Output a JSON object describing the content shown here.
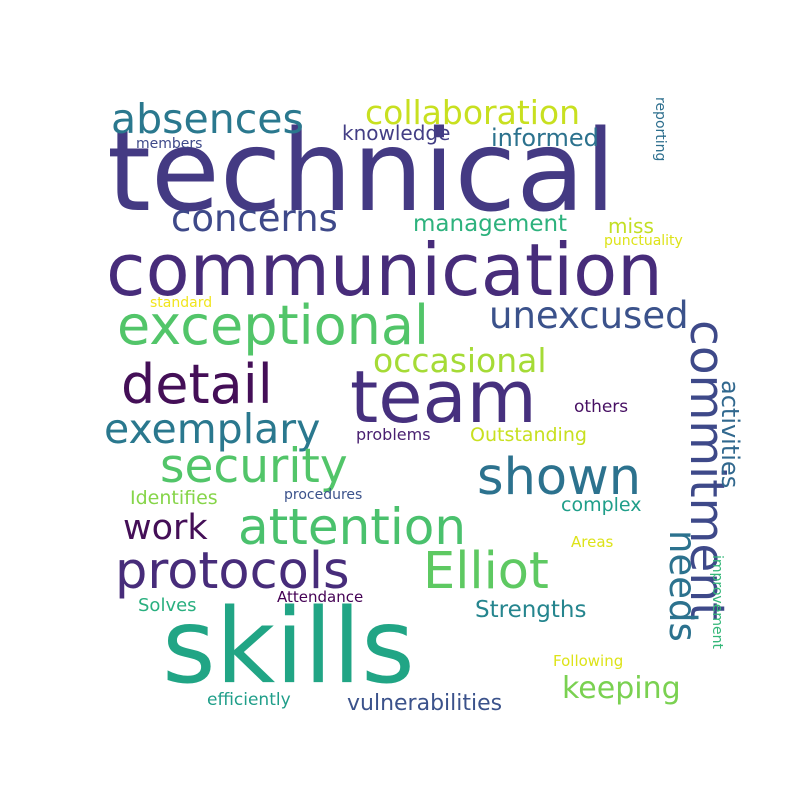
{
  "words": [
    {
      "text": "technical",
      "color": "#443a83"
    },
    {
      "text": "communication",
      "color": "#472c7a"
    },
    {
      "text": "skills",
      "color": "#21a585"
    },
    {
      "text": "team",
      "color": "#46307e"
    },
    {
      "text": "exceptional",
      "color": "#52c569"
    },
    {
      "text": "detail",
      "color": "#440f57"
    },
    {
      "text": "absences",
      "color": "#2a788e"
    },
    {
      "text": "collaboration",
      "color": "#c8e020"
    },
    {
      "text": "concerns",
      "color": "#3e4989"
    },
    {
      "text": "unexcused",
      "color": "#3b528b"
    },
    {
      "text": "occasional",
      "color": "#a5db36"
    },
    {
      "text": "exemplary",
      "color": "#2a788e"
    },
    {
      "text": "security",
      "color": "#52c569"
    },
    {
      "text": "shown",
      "color": "#2c728e"
    },
    {
      "text": "commitment",
      "color": "#3e4989"
    },
    {
      "text": "attention",
      "color": "#4ac16d"
    },
    {
      "text": "work",
      "color": "#440f57"
    },
    {
      "text": "protocols",
      "color": "#472c7a"
    },
    {
      "text": "Elliot",
      "color": "#5ec962"
    },
    {
      "text": "needs",
      "color": "#2c728e"
    },
    {
      "text": "activities",
      "color": "#31688e"
    },
    {
      "text": "keeping",
      "color": "#7ad151"
    },
    {
      "text": "vulnerabilities",
      "color": "#3b528b"
    },
    {
      "text": "Strengths",
      "color": "#25858e"
    },
    {
      "text": "knowledge",
      "color": "#433e85"
    },
    {
      "text": "informed",
      "color": "#2c728e"
    },
    {
      "text": "management",
      "color": "#2db27d"
    },
    {
      "text": "miss",
      "color": "#c2df23"
    },
    {
      "text": "reporting",
      "color": "#2e6f8e"
    },
    {
      "text": "members",
      "color": "#3e4989"
    },
    {
      "text": "punctuality",
      "color": "#dde318"
    },
    {
      "text": "standard",
      "color": "#f1e51d"
    },
    {
      "text": "others",
      "color": "#471063"
    },
    {
      "text": "problems",
      "color": "#481f70"
    },
    {
      "text": "Outstanding",
      "color": "#c8e020"
    },
    {
      "text": "Identifies",
      "color": "#86d549"
    },
    {
      "text": "procedures",
      "color": "#3b528b"
    },
    {
      "text": "complex",
      "color": "#1f9e89"
    },
    {
      "text": "Areas",
      "color": "#dde318"
    },
    {
      "text": "Solves",
      "color": "#29af7f"
    },
    {
      "text": "Attendance",
      "color": "#440154"
    },
    {
      "text": "improvement",
      "color": "#35b779"
    },
    {
      "text": "Following",
      "color": "#dde318"
    },
    {
      "text": "efficiently",
      "color": "#1f9e89"
    }
  ]
}
